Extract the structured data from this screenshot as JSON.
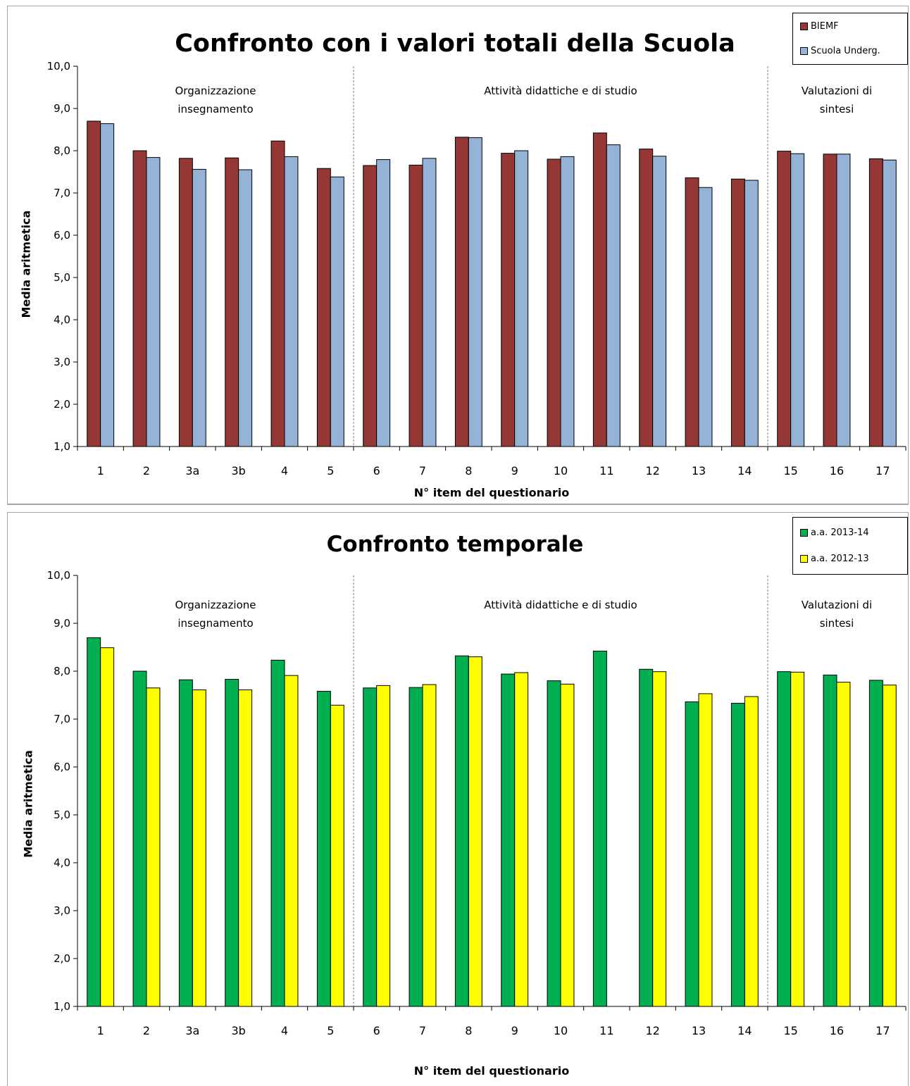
{
  "charts": [
    {
      "chart_data": {
        "type": "bar",
        "title": "Confronto con i valori totali della Scuola",
        "xlabel": "N° item del questionario",
        "ylabel": "Media aritmetica",
        "ylim": [
          1,
          10
        ],
        "yticks": [
          "1,0",
          "2,0",
          "3,0",
          "4,0",
          "5,0",
          "6,0",
          "7,0",
          "8,0",
          "9,0",
          "10,0"
        ],
        "categories": [
          "1",
          "2",
          "3a",
          "3b",
          "4",
          "5",
          "6",
          "7",
          "8",
          "9",
          "10",
          "11",
          "12",
          "13",
          "14",
          "15",
          "16",
          "17"
        ],
        "series": [
          {
            "name": "BIEMF",
            "color": "#953735",
            "values": [
              8.7,
              8.0,
              7.82,
              7.83,
              8.23,
              7.58,
              7.65,
              7.66,
              8.32,
              7.94,
              7.8,
              8.42,
              8.04,
              7.36,
              7.33,
              7.99,
              7.92,
              7.81
            ]
          },
          {
            "name": "Scuola Underg.",
            "color": "#95b3d7",
            "values": [
              8.64,
              7.84,
              7.56,
              7.55,
              7.86,
              7.38,
              7.79,
              7.82,
              8.31,
              8.0,
              7.86,
              8.14,
              7.87,
              7.13,
              7.3,
              7.93,
              7.92,
              7.78
            ]
          }
        ],
        "groups": [
          {
            "label_lines": [
              "Organizzazione",
              "insegnamento"
            ],
            "from": 0,
            "to": 5
          },
          {
            "label_lines": [
              "Attività didattiche e di studio"
            ],
            "from": 6,
            "to": 14
          },
          {
            "label_lines": [
              "Valutazioni di",
              "sintesi"
            ],
            "from": 15,
            "to": 17
          }
        ],
        "grid": false,
        "legend_position": "top-right"
      }
    },
    {
      "chart_data": {
        "type": "bar",
        "title": "Confronto temporale",
        "xlabel": "N° item del questionario",
        "ylabel": "Media aritmetica",
        "ylim": [
          1,
          10
        ],
        "yticks": [
          "1,0",
          "2,0",
          "3,0",
          "4,0",
          "5,0",
          "6,0",
          "7,0",
          "8,0",
          "9,0",
          "10,0"
        ],
        "categories": [
          "1",
          "2",
          "3a",
          "3b",
          "4",
          "5",
          "6",
          "7",
          "8",
          "9",
          "10",
          "11",
          "12",
          "13",
          "14",
          "15",
          "16",
          "17"
        ],
        "series": [
          {
            "name": "a.a. 2013-14",
            "color": "#00b050",
            "values": [
              8.7,
              8.0,
              7.82,
              7.83,
              8.23,
              7.58,
              7.65,
              7.66,
              8.32,
              7.94,
              7.8,
              8.42,
              8.04,
              7.36,
              7.33,
              7.99,
              7.92,
              7.81
            ]
          },
          {
            "name": "a.a. 2012-13",
            "color": "#ffff00",
            "values": [
              8.49,
              7.65,
              7.61,
              7.61,
              7.91,
              7.29,
              7.7,
              7.72,
              8.3,
              7.97,
              7.73,
              null,
              7.99,
              7.53,
              7.47,
              7.98,
              7.77,
              7.71
            ]
          }
        ],
        "groups": [
          {
            "label_lines": [
              "Organizzazione",
              "insegnamento"
            ],
            "from": 0,
            "to": 5
          },
          {
            "label_lines": [
              "Attività didattiche e di studio"
            ],
            "from": 6,
            "to": 14
          },
          {
            "label_lines": [
              "Valutazioni di",
              "sintesi"
            ],
            "from": 15,
            "to": 17
          }
        ],
        "grid": false,
        "legend_position": "top-right"
      }
    }
  ]
}
